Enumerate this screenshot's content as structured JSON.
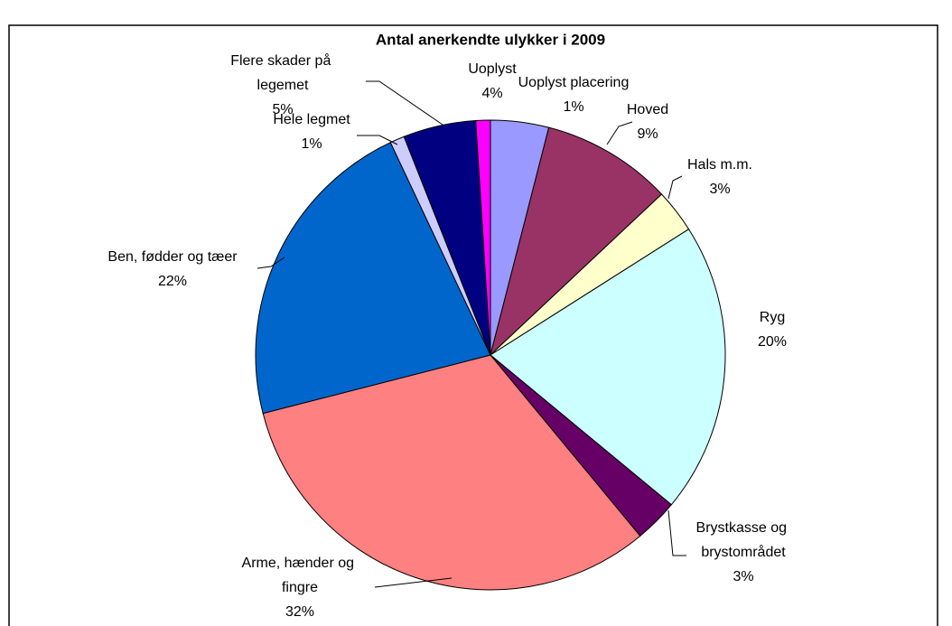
{
  "chart_data": {
    "type": "pie",
    "title": "Antal anerkendte ulykker i 2009",
    "categories": [
      "Uoplyst",
      "Hoved",
      "Hals m.m.",
      "Ryg",
      "Brystkasse og brystområdet",
      "Arme, hænder og fingre",
      "Ben, fødder og tæer",
      "Hele legmet",
      "Flere skader på legemet",
      "Uoplyst placering"
    ],
    "values": [
      4,
      9,
      3,
      20,
      3,
      32,
      22,
      1,
      5,
      1
    ],
    "value_labels": [
      "4%",
      "9%",
      "3%",
      "20%",
      "3%",
      "32%",
      "22%",
      "1%",
      "5%",
      "1%"
    ],
    "colors": [
      "#9999FF",
      "#993366",
      "#FFFFCC",
      "#CCFFFF",
      "#660066",
      "#FF8080",
      "#0066CC",
      "#CCCCFF",
      "#000080",
      "#FF00FF"
    ]
  }
}
